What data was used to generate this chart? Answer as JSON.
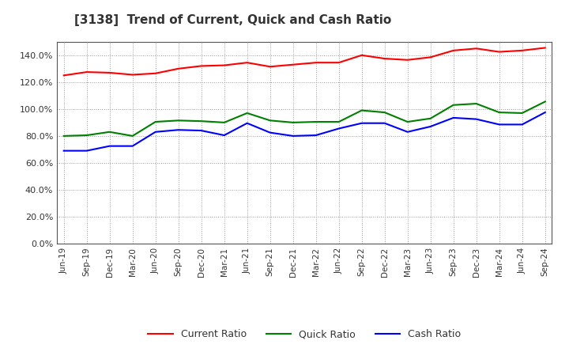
{
  "title": "[3138]  Trend of Current, Quick and Cash Ratio",
  "x_labels": [
    "Jun-19",
    "Sep-19",
    "Dec-19",
    "Mar-20",
    "Jun-20",
    "Sep-20",
    "Dec-20",
    "Mar-21",
    "Jun-21",
    "Sep-21",
    "Dec-21",
    "Mar-22",
    "Jun-22",
    "Sep-22",
    "Dec-22",
    "Mar-23",
    "Jun-23",
    "Sep-23",
    "Dec-23",
    "Mar-24",
    "Jun-24",
    "Sep-24"
  ],
  "current_ratio": [
    125.0,
    127.5,
    127.0,
    125.5,
    126.5,
    130.0,
    132.0,
    132.5,
    134.5,
    131.5,
    133.0,
    134.5,
    134.5,
    140.0,
    137.5,
    136.5,
    138.5,
    143.5,
    145.0,
    142.5,
    143.5,
    145.5
  ],
  "quick_ratio": [
    80.0,
    80.5,
    83.0,
    80.0,
    90.5,
    91.5,
    91.0,
    90.0,
    97.0,
    91.5,
    90.0,
    90.5,
    90.5,
    99.0,
    97.5,
    90.5,
    93.0,
    103.0,
    104.0,
    97.5,
    97.0,
    105.5
  ],
  "cash_ratio": [
    69.0,
    69.0,
    72.5,
    72.5,
    83.0,
    84.5,
    84.0,
    80.5,
    89.5,
    82.5,
    80.0,
    80.5,
    85.5,
    89.5,
    89.5,
    83.0,
    87.0,
    93.5,
    92.5,
    88.5,
    88.5,
    97.5
  ],
  "current_color": "#ff0000",
  "quick_color": "#008000",
  "cash_color": "#0000ff",
  "ylim": [
    0,
    150
  ],
  "yticks": [
    0,
    20,
    40,
    60,
    80,
    100,
    120,
    140
  ],
  "background_color": "#ffffff",
  "plot_bg_color": "#ffffff",
  "grid_color": "#999999",
  "legend_labels": [
    "Current Ratio",
    "Quick Ratio",
    "Cash Ratio"
  ],
  "title_color": "#333333",
  "tick_color": "#333333"
}
